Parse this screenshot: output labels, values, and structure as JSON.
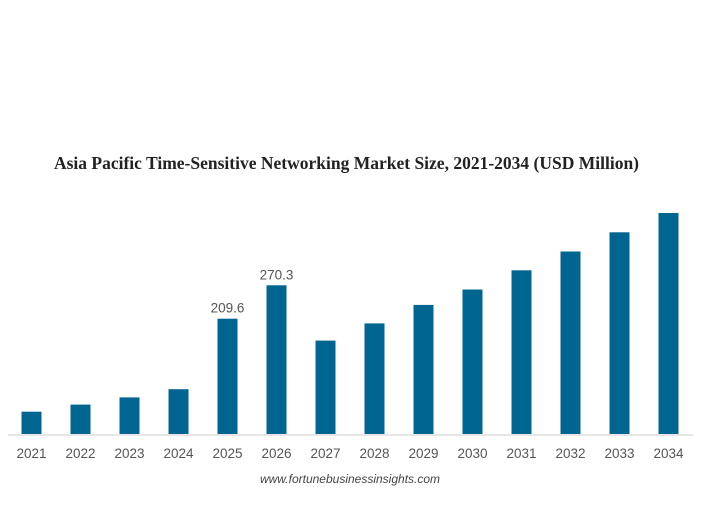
{
  "chart_data": {
    "type": "bar",
    "title": "Asia Pacific Time-Sensitive Networking Market Size, 2021-2034 (USD Million)",
    "categories": [
      "2021",
      "2022",
      "2023",
      "2024",
      "2025",
      "2026",
      "2027",
      "2028",
      "2029",
      "2030",
      "2031",
      "2032",
      "2033",
      "2034"
    ],
    "values": [
      40.5,
      53.4,
      66.5,
      81.4,
      209.6,
      270.3,
      169.7,
      200.9,
      234.6,
      262.6,
      297.4,
      331.6,
      366.5,
      401.6
    ],
    "data_labels": {
      "2025": "209.6",
      "2026": "270.3"
    },
    "xlabel": "",
    "ylabel": "",
    "ylim": [
      0,
      420
    ],
    "grid": false,
    "bar_color": "#006591"
  },
  "source": "www.fortunebusinessinsights.com"
}
